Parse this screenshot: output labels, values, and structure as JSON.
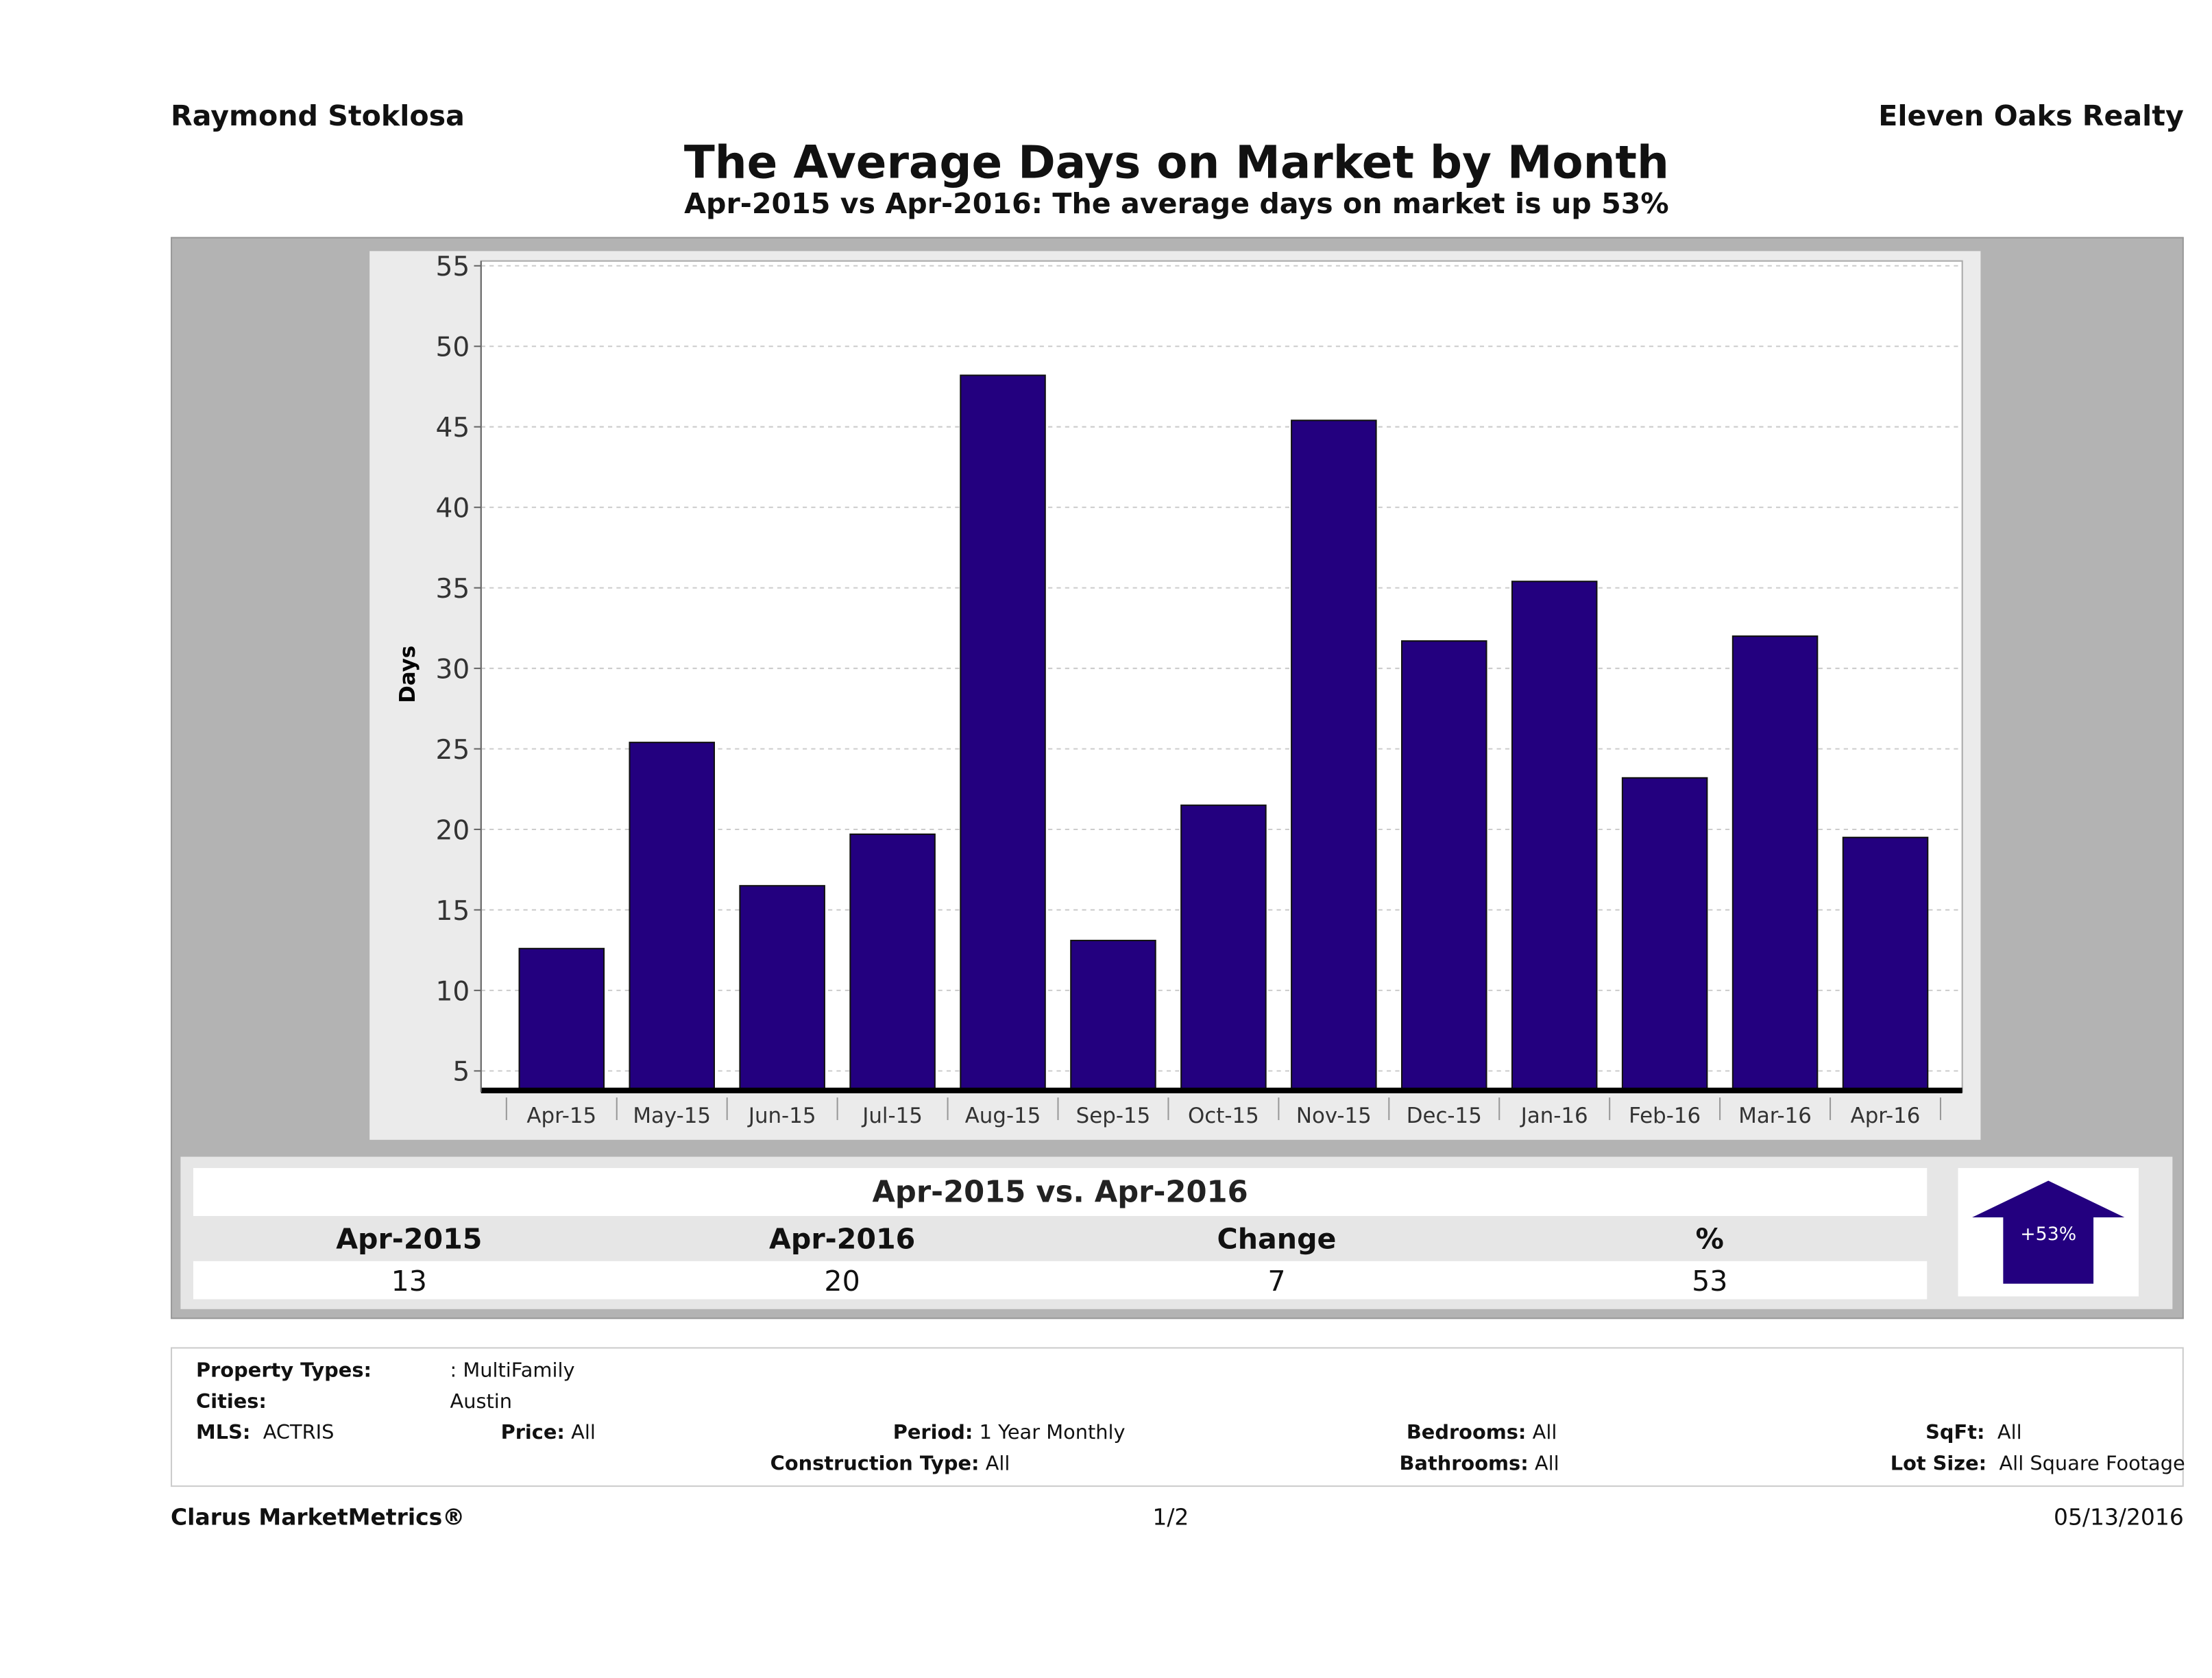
{
  "header": {
    "agent": "Raymond Stoklosa",
    "company": "Eleven Oaks Realty",
    "title": "The Average Days on Market by Month",
    "subtitle": "Apr-2015 vs Apr-2016: The average days on market is up 53%"
  },
  "chart_data": {
    "type": "bar",
    "title": "The Average Days on Market by Month",
    "xlabel": "",
    "ylabel": "Days",
    "categories": [
      "Apr-15",
      "May-15",
      "Jun-15",
      "Jul-15",
      "Aug-15",
      "Sep-15",
      "Oct-15",
      "Nov-15",
      "Dec-15",
      "Jan-16",
      "Feb-16",
      "Mar-16",
      "Apr-16"
    ],
    "values": [
      12.6,
      25.4,
      16.5,
      19.7,
      48.2,
      13.1,
      21.5,
      45.4,
      31.7,
      35.4,
      23.2,
      32.0,
      19.5
    ],
    "yticks": [
      5,
      10,
      15,
      20,
      25,
      30,
      35,
      40,
      45,
      50,
      55
    ],
    "ylim": [
      3.7,
      55.3
    ],
    "grid": true,
    "bar_color": "#23007f"
  },
  "comparison": {
    "title": "Apr-2015 vs. Apr-2016",
    "headers": [
      "Apr-2015",
      "Apr-2016",
      "Change",
      "%"
    ],
    "values": [
      "13",
      "20",
      "7",
      "53"
    ],
    "badge": "+53%"
  },
  "filters": {
    "property_types_label": "Property Types:",
    "property_types": ": MultiFamily",
    "cities_label": "Cities:",
    "cities": "Austin",
    "mls_label": "MLS:",
    "mls": "ACTRIS",
    "price_label": "Price:",
    "price": "All",
    "period_label": "Period:",
    "period": "1 Year Monthly",
    "construction_label": "Construction Type:",
    "construction": "All",
    "bedrooms_label": "Bedrooms:",
    "bedrooms": "All",
    "bathrooms_label": "Bathrooms:",
    "bathrooms": "All",
    "sqft_label": "SqFt:",
    "sqft": "All",
    "lot_label": "Lot Size:",
    "lot": "All Square Footage"
  },
  "footer": {
    "brand": "Clarus MarketMetrics®",
    "page": "1/2",
    "date": "05/13/2016"
  }
}
